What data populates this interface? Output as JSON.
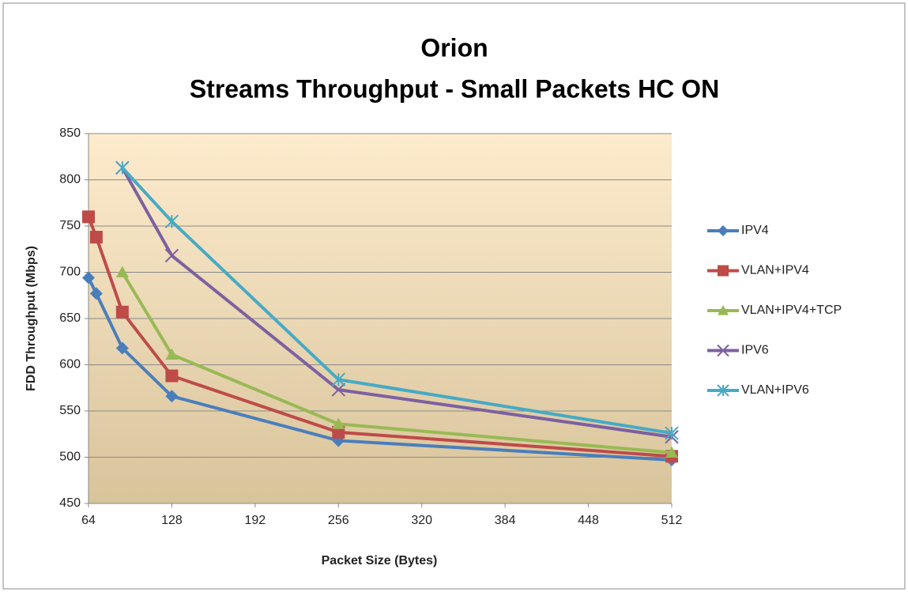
{
  "chart_data": {
    "type": "line",
    "title": "Orion",
    "subtitle": "Streams Throughput - Small Packets HC ON",
    "x_label": "Packet Size (Bytes)",
    "y_label": "FDD Throughput (Mbps)",
    "x": [
      64,
      70,
      90,
      128,
      256,
      512
    ],
    "series": [
      {
        "name": "IPV4",
        "color": "#4a7ebb",
        "marker": "diamond",
        "values": [
          694,
          677,
          618,
          566,
          518,
          497
        ]
      },
      {
        "name": "VLAN+IPV4",
        "color": "#be4b48",
        "marker": "square",
        "values": [
          760,
          738,
          657,
          588,
          527,
          501
        ]
      },
      {
        "name": "VLAN+IPV4+TCP",
        "color": "#98b954",
        "marker": "triangle",
        "values": [
          null,
          null,
          700,
          611,
          536,
          505
        ]
      },
      {
        "name": "IPV6",
        "color": "#7d60a0",
        "marker": "x",
        "values": [
          null,
          null,
          813,
          718,
          573,
          522
        ]
      },
      {
        "name": "VLAN+IPV6",
        "color": "#46aac5",
        "marker": "star",
        "values": [
          null,
          null,
          813,
          755,
          584,
          526
        ]
      }
    ],
    "xlim": [
      64,
      512
    ],
    "xticks": [
      64,
      128,
      192,
      256,
      320,
      384,
      448,
      512
    ],
    "ylim": [
      450,
      850
    ],
    "yticks": [
      450,
      500,
      550,
      600,
      650,
      700,
      750,
      800,
      850
    ],
    "grid": true,
    "legend": "right"
  }
}
